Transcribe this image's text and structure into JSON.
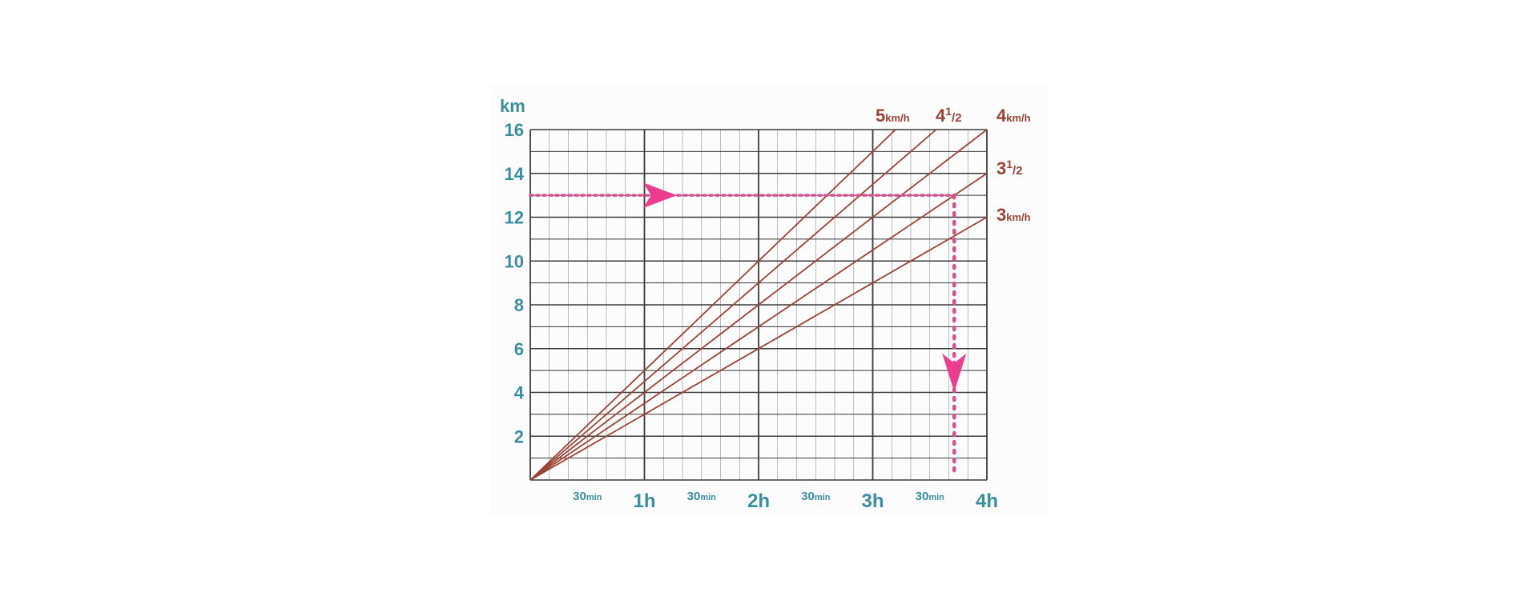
{
  "chart_data": {
    "type": "line",
    "ylabel": "km",
    "ylim": [
      0,
      16
    ],
    "y_ticks": [
      "2",
      "4",
      "6",
      "8",
      "10",
      "12",
      "14",
      "16"
    ],
    "xlim_hours": [
      0,
      4
    ],
    "x_major_ticks": [
      {
        "hours": 1,
        "label": "1h"
      },
      {
        "hours": 2,
        "label": "2h"
      },
      {
        "hours": 3,
        "label": "3h"
      },
      {
        "hours": 4,
        "label": "4h"
      }
    ],
    "x_minor_ticks": [
      {
        "hours": 0.5,
        "num": "30",
        "unit": "min"
      },
      {
        "hours": 1.5,
        "num": "30",
        "unit": "min"
      },
      {
        "hours": 2.5,
        "num": "30",
        "unit": "min"
      },
      {
        "hours": 3.5,
        "num": "30",
        "unit": "min"
      }
    ],
    "grid": {
      "minor_x_hours": 0.1666667,
      "minor_y_km": 1,
      "major_x_hours": 1,
      "major_y_km": 2
    },
    "series": [
      {
        "speed": 5,
        "label_main": "5",
        "label_unit": "km/h"
      },
      {
        "speed": 4.5,
        "label_main": "4",
        "label_sup": "1",
        "label_sub": "/2"
      },
      {
        "speed": 4,
        "label_main": "4",
        "label_unit": "km/h"
      },
      {
        "speed": 3.5,
        "label_main": "3",
        "label_sup": "1",
        "label_sub": "/2"
      },
      {
        "speed": 3,
        "label_main": "3",
        "label_unit": "km/h"
      }
    ],
    "example": {
      "distance_km": 13,
      "speed_kmh": 3.5,
      "time_hours": 3.714
    }
  },
  "colors": {
    "grid": "#3a3a3a",
    "series": "#9a4438",
    "axis_text": "#3b8ea0",
    "series_label": "#9a4438",
    "example_line": "#d94f90",
    "arrow": "#ec3d8e",
    "panel": "#fdfcfc"
  }
}
